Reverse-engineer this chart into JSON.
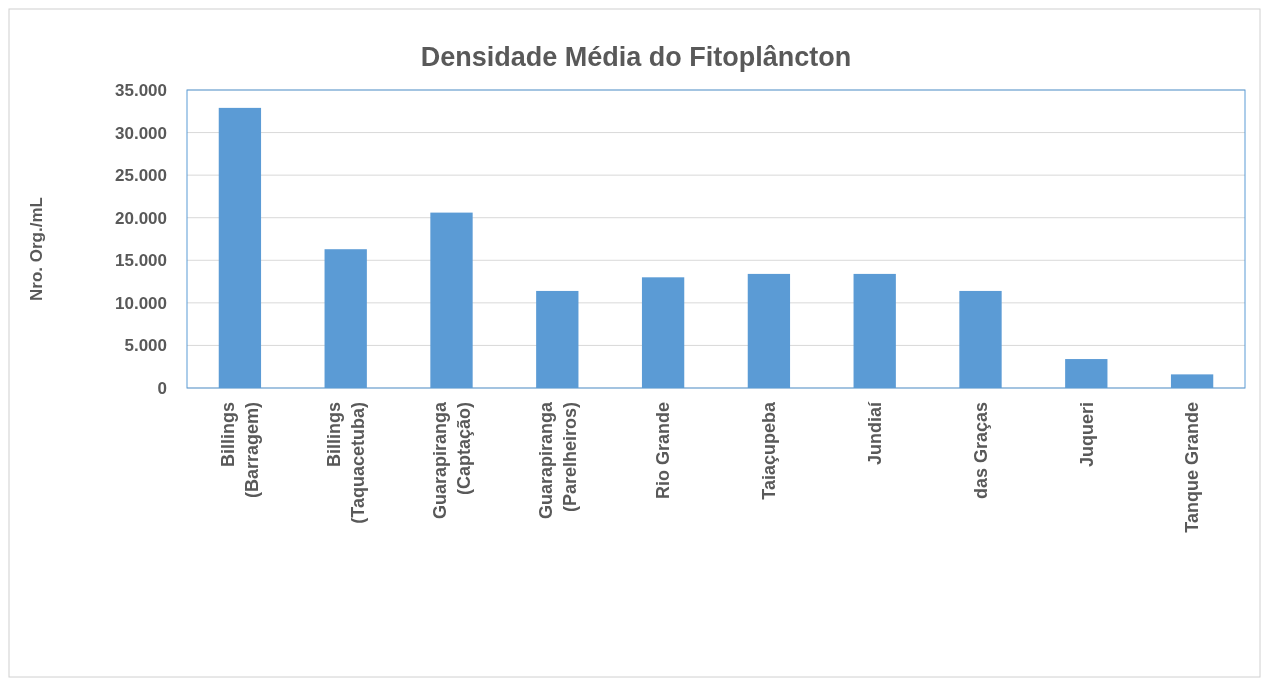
{
  "chart_data": {
    "type": "bar",
    "title": "Densidade Média do Fitoplâncton",
    "ylabel": "Nro. Org./mL",
    "categories": [
      "Billings\n(Barragem)",
      "Billings\n(Taquacetuba)",
      "Guarapiranga\n(Captação)",
      "Guarapiranga\n(Parelheiros)",
      "Rio Grande",
      "Taiaçupeba",
      "Jundiaí",
      "das Graças",
      "Juqueri",
      "Tanque Grande"
    ],
    "values": [
      32900,
      16300,
      20600,
      11400,
      13000,
      13400,
      13400,
      11400,
      3400,
      1600
    ],
    "color": "#5b9bd5",
    "ylim": [
      0,
      35000
    ],
    "yticks": [
      0,
      {
        "value": 5000,
        "label": "5.000"
      },
      {
        "value": 10000,
        "label": "10.000"
      },
      {
        "value": 15000,
        "label": "15.000"
      },
      {
        "value": 20000,
        "label": "20.000"
      },
      {
        "value": 25000,
        "label": "25.000"
      },
      {
        "value": 30000,
        "label": "30.000"
      },
      {
        "value": 35000,
        "label": "35.000"
      }
    ],
    "grid": "y"
  }
}
